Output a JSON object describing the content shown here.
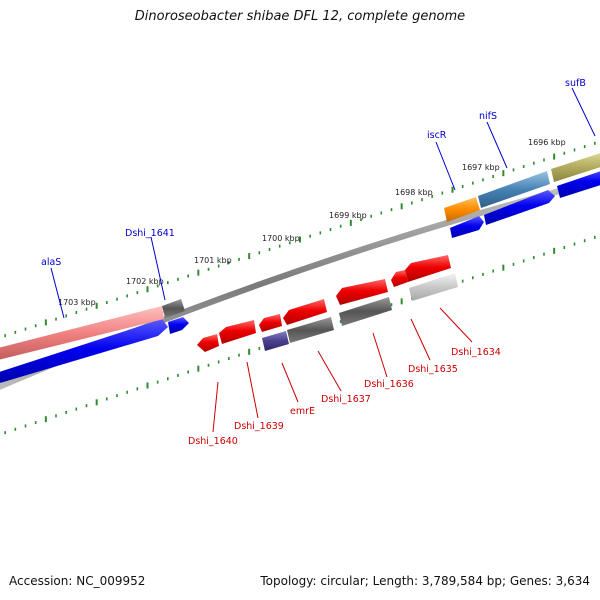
{
  "title": "Dinoroseobacter shibae DFL 12, complete genome",
  "footer": {
    "accession": "Accession: NC_009952",
    "stats": "Topology: circular; Length: 3,789,584 bp; Genes: 3,634"
  },
  "colors": {
    "forward_label": "#0000cc",
    "reverse_label": "#cc0000",
    "backbone": "#8c8c8c",
    "tick": "#2e8b2e",
    "forward_cds": "#0000ee",
    "reverse_cds": "#ee0000"
  },
  "ruler": [
    "1703 kbp",
    "1702 kbp",
    "1701 kbp",
    "1700 kbp",
    "1699 kbp",
    "1698 kbp",
    "1697 kbp",
    "1696 kbp"
  ],
  "forward_genes": [
    "alaS",
    "Dshi_1641",
    "iscR",
    "nifS",
    "sufB"
  ],
  "reverse_genes": [
    "Dshi_1640",
    "Dshi_1639",
    "emrE",
    "Dshi_1637",
    "Dshi_1636",
    "Dshi_1635",
    "Dshi_1634"
  ]
}
